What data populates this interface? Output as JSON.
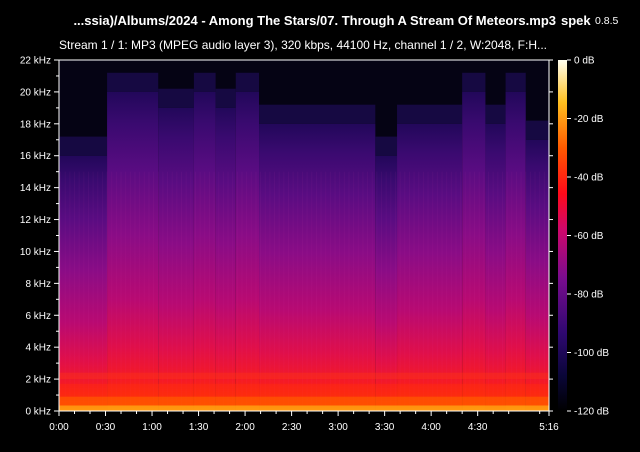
{
  "header": {
    "title": "...ssia)/Albums/2024 - Among The Stars/07. Through A Stream Of Meteors.mp3",
    "app_name": "spek",
    "app_version": "0.8.5"
  },
  "stream_info": "Stream 1 / 1: MP3 (MPEG audio layer 3), 320 kbps, 44100 Hz, channel 1 / 2, W:2048, F:H...",
  "chart_data": {
    "type": "heatmap",
    "title": "",
    "xlabel": "",
    "ylabel": "",
    "x_ticks": [
      "0:00",
      "0:30",
      "1:00",
      "1:30",
      "2:00",
      "2:30",
      "3:00",
      "3:30",
      "4:00",
      "4:30",
      "5:16"
    ],
    "x_tick_seconds": [
      0,
      30,
      60,
      90,
      120,
      150,
      180,
      210,
      240,
      270,
      316
    ],
    "xlim": [
      0,
      316
    ],
    "y_ticks": [
      "0 kHz",
      "2 kHz",
      "4 kHz",
      "6 kHz",
      "8 kHz",
      "10 kHz",
      "12 kHz",
      "14 kHz",
      "16 kHz",
      "18 kHz",
      "20 kHz",
      "22 kHz"
    ],
    "y_tick_khz": [
      0,
      2,
      4,
      6,
      8,
      10,
      12,
      14,
      16,
      18,
      20,
      22
    ],
    "ylim": [
      0,
      22
    ],
    "colorbar": {
      "labels": [
        "0 dB",
        "-20 dB",
        "-40 dB",
        "-60 dB",
        "-80 dB",
        "-100 dB",
        "-120 dB"
      ],
      "values": [
        0,
        -20,
        -40,
        -60,
        -80,
        -100,
        -120
      ],
      "range": [
        -120,
        0
      ]
    },
    "cutoff_segments_khz": [
      {
        "start": 0,
        "end": 31,
        "cutoff": 16
      },
      {
        "start": 31,
        "end": 64,
        "cutoff": 20
      },
      {
        "start": 64,
        "end": 87,
        "cutoff": 19
      },
      {
        "start": 87,
        "end": 101,
        "cutoff": 20
      },
      {
        "start": 101,
        "end": 114,
        "cutoff": 19
      },
      {
        "start": 114,
        "end": 129,
        "cutoff": 20
      },
      {
        "start": 129,
        "end": 204,
        "cutoff": 18
      },
      {
        "start": 204,
        "end": 218,
        "cutoff": 16
      },
      {
        "start": 218,
        "end": 260,
        "cutoff": 18
      },
      {
        "start": 260,
        "end": 275,
        "cutoff": 20
      },
      {
        "start": 275,
        "end": 288,
        "cutoff": 18
      },
      {
        "start": 288,
        "end": 301,
        "cutoff": 20
      },
      {
        "start": 301,
        "end": 316,
        "cutoff": 17
      }
    ]
  }
}
